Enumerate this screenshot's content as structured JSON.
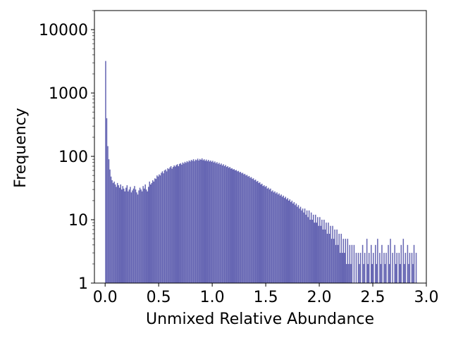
{
  "chart_data": {
    "type": "bar",
    "xlabel": "Unmixed Relative Abundance",
    "ylabel": "Frequency",
    "xlim": [
      -0.1,
      3.0
    ],
    "ylim": [
      1,
      20000
    ],
    "yscale": "log",
    "grid": false,
    "bar_color": "#6666b3",
    "x_ticks": [
      0.0,
      0.5,
      1.0,
      1.5,
      2.0,
      2.5,
      3.0
    ],
    "x_tick_labels": [
      "0.0",
      "0.5",
      "1.0",
      "1.5",
      "2.0",
      "2.5",
      "3.0"
    ],
    "y_ticks": [
      1,
      10,
      100,
      1000,
      10000
    ],
    "y_tick_labels": [
      "1",
      "10",
      "100",
      "1000",
      "10000"
    ],
    "bin_start": 0.0,
    "bin_width": 0.01,
    "counts": [
      3200,
      400,
      145,
      90,
      62,
      48,
      42,
      38,
      40,
      36,
      33,
      38,
      35,
      32,
      36,
      30,
      34,
      31,
      28,
      32,
      35,
      28,
      30,
      33,
      27,
      29,
      31,
      34,
      30,
      27,
      25,
      29,
      32,
      30,
      28,
      34,
      31,
      36,
      30,
      28,
      33,
      40,
      36,
      38,
      42,
      40,
      45,
      44,
      50,
      48,
      52,
      50,
      55,
      58,
      54,
      60,
      62,
      58,
      65,
      63,
      67,
      70,
      64,
      68,
      72,
      69,
      73,
      75,
      70,
      76,
      78,
      74,
      80,
      77,
      82,
      79,
      84,
      81,
      86,
      83,
      88,
      85,
      90,
      84,
      89,
      87,
      92,
      86,
      91,
      88,
      93,
      87,
      90,
      85,
      89,
      84,
      88,
      83,
      86,
      82,
      85,
      80,
      83,
      78,
      81,
      76,
      79,
      74,
      77,
      72,
      75,
      70,
      73,
      68,
      70,
      66,
      68,
      64,
      65,
      62,
      63,
      60,
      61,
      58,
      59,
      56,
      57,
      54,
      55,
      52,
      53,
      50,
      51,
      48,
      49,
      46,
      47,
      44,
      45,
      42,
      43,
      40,
      41,
      38,
      39,
      36,
      37,
      34,
      35,
      33,
      34,
      31,
      32,
      30,
      31,
      28,
      29,
      27,
      28,
      26,
      27,
      25,
      26,
      24,
      25,
      23,
      24,
      22,
      23,
      21,
      22,
      20,
      21,
      19,
      20,
      18,
      19,
      17,
      18,
      16,
      17,
      15,
      16,
      14,
      15,
      13,
      15,
      12,
      14,
      11,
      14,
      10,
      13,
      10,
      12,
      9,
      12,
      9,
      11,
      8,
      11,
      8,
      10,
      7,
      10,
      7,
      9,
      6,
      9,
      6,
      8,
      5,
      8,
      5,
      7,
      4,
      7,
      4,
      6,
      3,
      6,
      3,
      5,
      3,
      5,
      2,
      5,
      2,
      4,
      2,
      4,
      1,
      4,
      1,
      3,
      1,
      3,
      2,
      3,
      1,
      4,
      2,
      3,
      1,
      5,
      2,
      3,
      1,
      4,
      2,
      3,
      1,
      4,
      2,
      5,
      1,
      3,
      2,
      4,
      1,
      3,
      2,
      3,
      1,
      4,
      2,
      5,
      1,
      3,
      1,
      4,
      2,
      3,
      1,
      3,
      2,
      4,
      1,
      5,
      2,
      3,
      1,
      4,
      2,
      3,
      1,
      3,
      2,
      4,
      1,
      3
    ]
  }
}
